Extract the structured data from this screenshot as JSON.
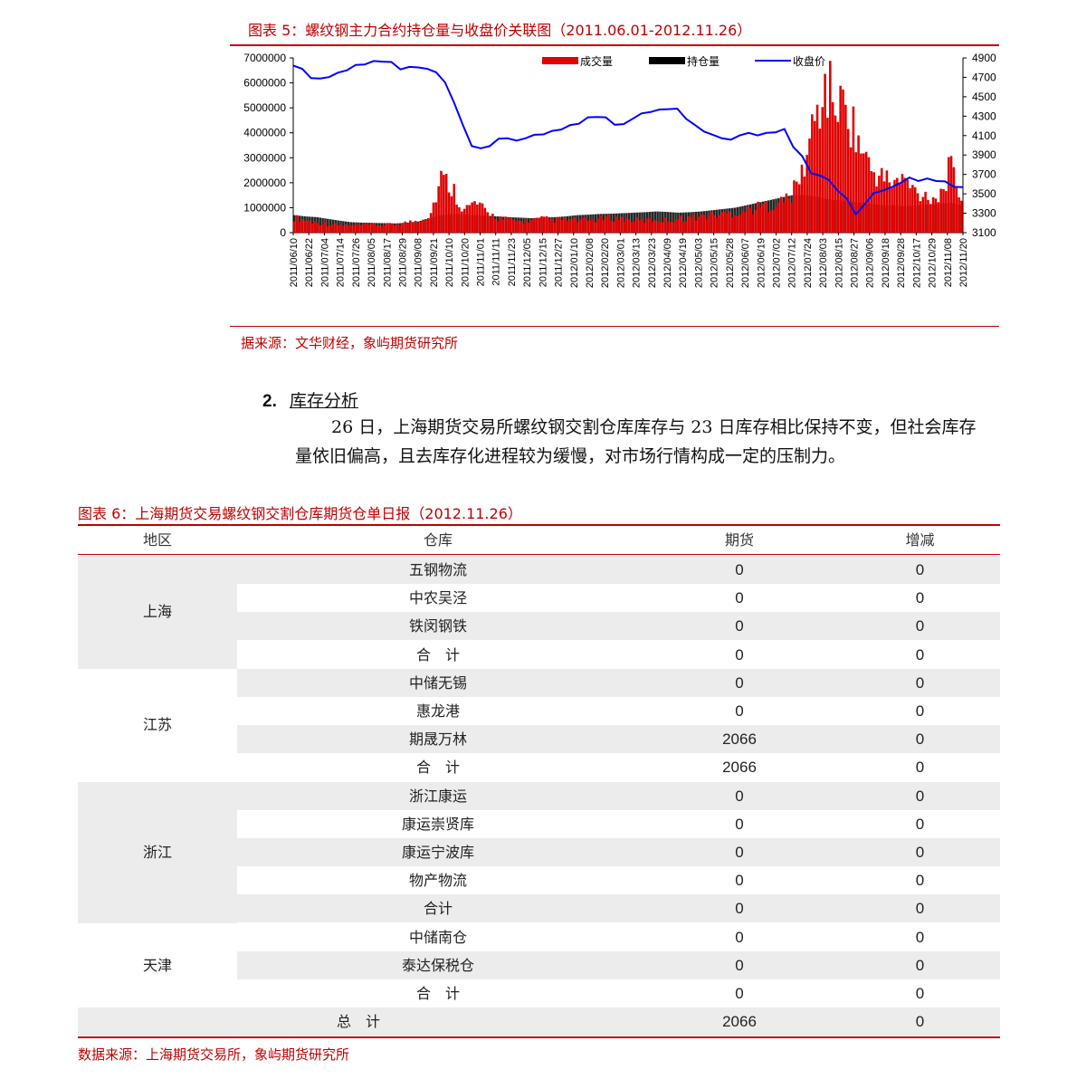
{
  "figure5": {
    "title": "图表 5：螺纹钢主力合约持仓量与收盘价关联图（2011.06.01-2012.11.26）",
    "source": "据来源：文华财经，象屿期货研究所"
  },
  "chart_data": {
    "type": "bar+line",
    "title": "螺纹钢主力合约持仓量与收盘价关联图（2011.06.01-2012.11.26）",
    "legend": [
      "成交量",
      "持仓量",
      "收盘价"
    ],
    "legend_position": "top-right",
    "colors": {
      "volume": "#e00000",
      "open_interest": "#000000",
      "close": "#0000ff"
    },
    "left_axis": {
      "min": 0,
      "max": 7000000,
      "ticks": [
        "0",
        "1000000",
        "2000000",
        "3000000",
        "4000000",
        "5000000",
        "6000000",
        "7000000"
      ]
    },
    "right_axis": {
      "min": 3100,
      "max": 4900,
      "ticks": [
        "3100",
        "3300",
        "3500",
        "3700",
        "3900",
        "4100",
        "4300",
        "4500",
        "4700",
        "4900"
      ]
    },
    "x_tick_labels": [
      "2011/06/10",
      "2011/06/22",
      "2011/07/04",
      "2011/07/14",
      "2011/07/26",
      "2011/08/05",
      "2011/08/17",
      "2011/08/29",
      "2011/09/08",
      "2011/09/21",
      "2011/10/10",
      "2011/10/20",
      "2011/11/01",
      "2011/11/11",
      "2011/11/23",
      "2011/12/05",
      "2011/12/15",
      "2011/12/27",
      "2012/01/10",
      "2012/02/08",
      "2012/02/20",
      "2012/03/01",
      "2012/03/13",
      "2012/03/23",
      "2012/04/09",
      "2012/04/19",
      "2012/05/03",
      "2012/05/15",
      "2012/05/28",
      "2012/06/07",
      "2012/06/19",
      "2012/07/02",
      "2012/07/12",
      "2012/07/24",
      "2012/08/03",
      "2012/08/15",
      "2012/08/27",
      "2012/09/06",
      "2012/09/18",
      "2012/09/28",
      "2012/10/17",
      "2012/10/29",
      "2012/11/08",
      "2012/11/20"
    ],
    "close_points": [
      4830,
      4780,
      4700,
      4680,
      4710,
      4740,
      4780,
      4820,
      4840,
      4860,
      4870,
      4850,
      4790,
      4800,
      4810,
      4780,
      4760,
      4640,
      4450,
      4200,
      4000,
      3960,
      4000,
      4060,
      4080,
      4040,
      4080,
      4100,
      4120,
      4140,
      4170,
      4200,
      4230,
      4280,
      4300,
      4280,
      4220,
      4210,
      4280,
      4320,
      4350,
      4360,
      4380,
      4370,
      4280,
      4200,
      4150,
      4100,
      4080,
      4050,
      4110,
      4120,
      4110,
      4120,
      4140,
      4160,
      3990,
      3880,
      3720,
      3680,
      3650,
      3520,
      3460,
      3280,
      3400,
      3500,
      3540,
      3560,
      3620,
      3660,
      3640,
      3650,
      3640,
      3620,
      3580,
      3560
    ],
    "volume_points": [
      600000,
      500000,
      400000,
      350000,
      300000,
      280000,
      300000,
      320000,
      300000,
      350000,
      400000,
      500000,
      700000,
      2200000,
      1800000,
      900000,
      1200000,
      800000,
      600000,
      500000,
      450000,
      500000,
      550000,
      500000,
      520000,
      500000,
      480000,
      550000,
      600000,
      550000,
      500000,
      480000,
      520000,
      500000,
      550000,
      600000,
      650000,
      700000,
      750000,
      800000,
      900000,
      1000000,
      1100000,
      1200000,
      1500000,
      2500000,
      4500000,
      5800000,
      5200000,
      4800000,
      3500000,
      2500000,
      2200000,
      2000000,
      2100000,
      1600000,
      1500000,
      1400000,
      2600000,
      1400000
    ],
    "open_interest_points": [
      700000,
      650000,
      620000,
      550000,
      480000,
      420000,
      400000,
      390000,
      380000,
      370000,
      400000,
      450000,
      600000,
      700000,
      750000,
      720000,
      700000,
      680000,
      650000,
      620000,
      600000,
      580000,
      600000,
      620000,
      650000,
      700000,
      720000,
      750000,
      760000,
      780000,
      800000,
      820000,
      850000,
      830000,
      800000,
      820000,
      850000,
      900000,
      950000,
      1000000,
      1100000,
      1200000,
      1300000,
      1400000,
      1500000,
      1500000,
      1450000,
      1350000,
      1300000,
      1250000,
      1200000,
      1150000,
      1100000,
      1100000,
      1050000,
      1100000,
      1120000,
      1150000,
      1200000,
      1100000
    ]
  },
  "section": {
    "number": "2.",
    "title": "库存分析",
    "paragraph": "26 日，上海期货交易所螺纹钢交割仓库库存与 23 日库存相比保持不变，但社会库存量依旧偏高，且去库存化进程较为缓慢，对市场行情构成一定的压制力。"
  },
  "table6": {
    "title": "图表 6：上海期货交易螺纹钢交割仓库期货仓单日报（2012.11.26）",
    "headers": [
      "地区",
      "仓库",
      "期货",
      "增减"
    ],
    "groups": [
      {
        "region": "上海",
        "rows": [
          {
            "warehouse": "五钢物流",
            "futures": "0",
            "change": "0"
          },
          {
            "warehouse": "中农吴泾",
            "futures": "0",
            "change": "0"
          },
          {
            "warehouse": "铁闵钢铁",
            "futures": "0",
            "change": "0"
          },
          {
            "warehouse": "合　计",
            "futures": "0",
            "change": "0"
          }
        ]
      },
      {
        "region": "江苏",
        "rows": [
          {
            "warehouse": "中储无锡",
            "futures": "0",
            "change": "0"
          },
          {
            "warehouse": "惠龙港",
            "futures": "0",
            "change": "0"
          },
          {
            "warehouse": "期晟万林",
            "futures": "2066",
            "change": "0"
          },
          {
            "warehouse": "合　计",
            "futures": "2066",
            "change": "0"
          }
        ]
      },
      {
        "region": "浙江",
        "rows": [
          {
            "warehouse": "浙江康运",
            "futures": "0",
            "change": "0"
          },
          {
            "warehouse": "康运崇贤库",
            "futures": "0",
            "change": "0"
          },
          {
            "warehouse": "康运宁波库",
            "futures": "0",
            "change": "0"
          },
          {
            "warehouse": "物产物流",
            "futures": "0",
            "change": "0"
          },
          {
            "warehouse": "合计",
            "futures": "0",
            "change": "0"
          }
        ]
      },
      {
        "region": "天津",
        "rows": [
          {
            "warehouse": "中储南仓",
            "futures": "0",
            "change": "0"
          },
          {
            "warehouse": "泰达保税仓",
            "futures": "0",
            "change": "0"
          },
          {
            "warehouse": "合　计",
            "futures": "0",
            "change": "0"
          }
        ]
      }
    ],
    "total": {
      "label": "总　计",
      "futures": "2066",
      "change": "0"
    },
    "source": "数据来源：上海期货交易所，象屿期货研究所"
  }
}
